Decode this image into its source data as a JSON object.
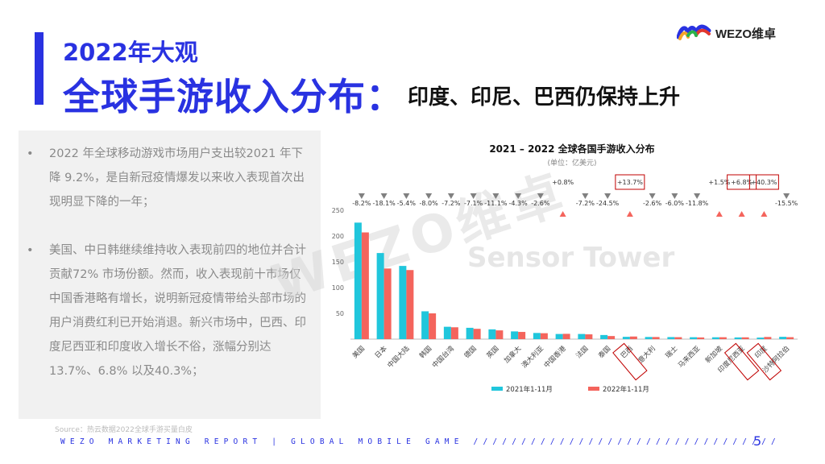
{
  "header": {
    "title_small": "2022年大观",
    "title_main": "全球手游收入分布：",
    "title_sub": "印度、印尼、巴西仍保持上升",
    "logo_text": "WEZO维卓"
  },
  "panel": {
    "bullets": [
      "2022 年全球移动游戏市场用户支出较2021 年下降 9.2%，是自新冠疫情爆发以来收入表现首次出现明显下降的一年；",
      "美国、中日韩继续维持收入表现前四的地位并合计贡献72% 市场份额。然而，收入表现前十市场仅中国香港略有增长，说明新冠疫情带给头部市场的用户消费红利已开始消退。新兴市场中，巴西、印度尼西亚和印度收入增长不俗，涨幅分别达 13.7%、6.8% 以及40.3%；"
    ],
    "bullet_symbol": "•"
  },
  "source": "Source：热云数据2022全球手游买量白皮",
  "footer": "WEZO MARKETING REPORT | GLOBAL MOBILE GAME ////////////////////////////////",
  "page_number": "5",
  "watermark": "WEZO维卓",
  "watermark2": "Sensor Tower",
  "colors": {
    "brand_blue": "#2932e1",
    "series_2021": "#20c6dc",
    "series_2022": "#f4645c",
    "down_marker": "#808080",
    "up_marker": "#f4645c",
    "highlight_box": "#c00000"
  },
  "chart_data": {
    "type": "bar",
    "title": "2021 – 2022 全球各国手游收入分布",
    "subtitle": "(单位：亿美元)",
    "categories": [
      "美国",
      "日本",
      "中国大陆",
      "韩国",
      "中国台湾",
      "德国",
      "英国",
      "加拿大",
      "澳大利亚",
      "中国香港",
      "法国",
      "泰国",
      "巴西",
      "意大利",
      "瑞士",
      "马来西亚",
      "新加坡",
      "印度尼西亚",
      "印度",
      "沙特阿拉伯"
    ],
    "series": [
      {
        "name": "2021年1-11月",
        "values": [
          226,
          167,
          142,
          54,
          24,
          22,
          19,
          15,
          12,
          10,
          10,
          8,
          4.5,
          4.2,
          4.0,
          3.7,
          3.6,
          3.3,
          3.0,
          4.5
        ]
      },
      {
        "name": "2022年1-11月",
        "values": [
          207,
          137,
          134,
          50,
          23,
          20,
          17,
          14,
          11.5,
          10.3,
          9.3,
          6,
          5.1,
          4.1,
          3.8,
          3.3,
          3.7,
          3.5,
          4.2,
          3.8
        ]
      }
    ],
    "changes": [
      "-8.2%",
      "-18.1%",
      "-5.4%",
      "-8.0%",
      "-7.2%",
      "-7.1%",
      "-11.1%",
      "-4.3%",
      "-2.6%",
      "+0.8%",
      "-7.2%",
      "-24.5%",
      "+13.7%",
      "-2.6%",
      "-6.0%",
      "-11.8%",
      "+1.5%",
      "+6.8%",
      "+40.3%",
      "-15.5%"
    ],
    "highlighted": [
      "巴西",
      "印度尼西亚",
      "印度"
    ],
    "yticks": [
      50,
      100,
      150,
      200,
      250
    ],
    "ylim": [
      0,
      250
    ],
    "legend_position": "bottom",
    "grid": false
  }
}
